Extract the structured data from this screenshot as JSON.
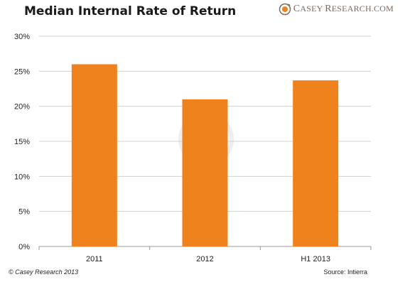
{
  "brand": {
    "logo_text_1": "C",
    "logo_text_2": "ASEY ",
    "logo_text_3": "R",
    "logo_text_4": "ESEARCH.COM",
    "icon": "casey-research-logo-icon",
    "color": "#7a6a60"
  },
  "footer": {
    "copyright": "© Casey Research 2013",
    "source": "Source: Intierra"
  },
  "colors": {
    "bar": "#f0821e",
    "grid": "#d0d0d0",
    "axis": "#999999"
  },
  "chart_data": {
    "type": "bar",
    "title": "Median Internal Rate of Return",
    "xlabel": "",
    "ylabel": "",
    "categories": [
      "2011",
      "2012",
      "H1 2013"
    ],
    "values": [
      26,
      21,
      23.7
    ],
    "ylim": [
      0,
      30
    ],
    "yticks": [
      0,
      5,
      10,
      15,
      20,
      25,
      30
    ],
    "ytick_labels": [
      "0%",
      "5%",
      "10%",
      "15%",
      "20%",
      "25%",
      "30%"
    ],
    "grid": true,
    "legend": "none"
  }
}
